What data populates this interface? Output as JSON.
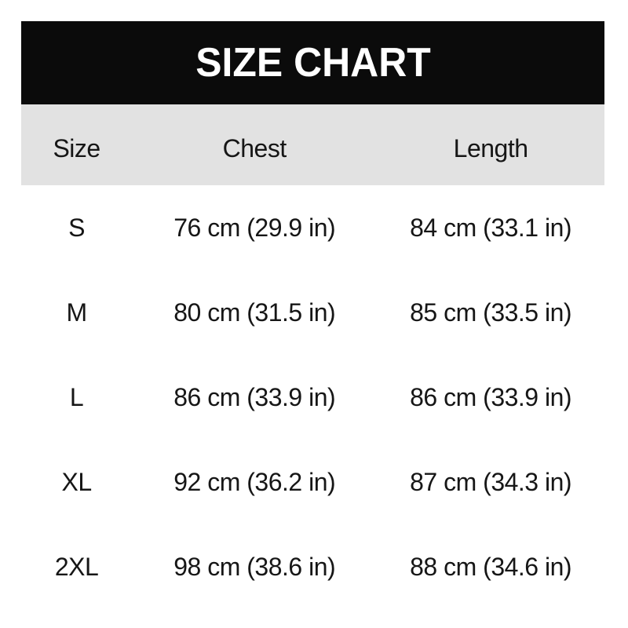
{
  "title": "SIZE CHART",
  "table": {
    "columns": {
      "size": "Size",
      "chest": "Chest",
      "length": "Length"
    },
    "rows": [
      {
        "size": "S",
        "chest": "76 cm (29.9 in)",
        "length": "84 cm (33.1 in)"
      },
      {
        "size": "M",
        "chest": "80 cm (31.5 in)",
        "length": "85 cm (33.5 in)"
      },
      {
        "size": "L",
        "chest": "86 cm (33.9 in)",
        "length": "86 cm (33.9 in)"
      },
      {
        "size": "XL",
        "chest": "92 cm (36.2 in)",
        "length": "87 cm (34.3 in)"
      },
      {
        "size": "2XL",
        "chest": "98 cm (38.6 in)",
        "length": "88 cm (34.6 in)"
      }
    ]
  },
  "chart_data": {
    "type": "table",
    "title": "SIZE CHART",
    "columns": [
      "Size",
      "Chest",
      "Length"
    ],
    "rows": [
      [
        "S",
        "76 cm (29.9 in)",
        "84 cm (33.1 in)"
      ],
      [
        "M",
        "80 cm (31.5 in)",
        "85 cm (33.5 in)"
      ],
      [
        "L",
        "86 cm (33.9 in)",
        "86 cm (33.9 in)"
      ],
      [
        "XL",
        "92 cm (36.2 in)",
        "87 cm (34.3 in)"
      ],
      [
        "2XL",
        "98 cm (38.6 in)",
        "88 cm (34.6 in)"
      ]
    ],
    "sizes": [
      "S",
      "M",
      "L",
      "XL",
      "2XL"
    ],
    "chest_cm": [
      76,
      80,
      86,
      92,
      98
    ],
    "chest_in": [
      29.9,
      31.5,
      33.9,
      36.2,
      38.6
    ],
    "length_cm": [
      84,
      85,
      86,
      87,
      88
    ],
    "length_in": [
      33.1,
      33.5,
      33.9,
      34.3,
      34.6
    ]
  },
  "colors": {
    "banner_bg": "#0b0b0b",
    "banner_text": "#ffffff",
    "header_row_bg": "#e2e2e2",
    "text": "#161616",
    "page_bg": "#ffffff"
  }
}
